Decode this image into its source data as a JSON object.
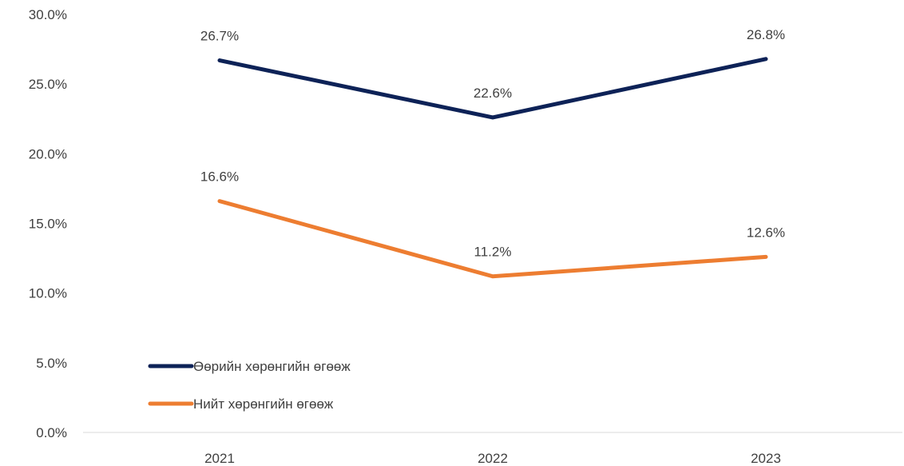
{
  "chart_data": {
    "type": "line",
    "title": "",
    "xlabel": "",
    "ylabel": "",
    "categories": [
      "2021",
      "2022",
      "2023"
    ],
    "ylim": [
      0,
      30
    ],
    "yticks": [
      "0.0%",
      "5.0%",
      "10.0%",
      "15.0%",
      "20.0%",
      "25.0%",
      "30.0%"
    ],
    "grid": false,
    "legend_position": "bottom-left",
    "series": [
      {
        "name": "Өөрийн хөрөнгийн өгөөж",
        "values": [
          26.7,
          22.6,
          26.8
        ],
        "labels": [
          "26.7%",
          "22.6%",
          "26.8%"
        ],
        "color": "#0d2257"
      },
      {
        "name": "Нийт хөрөнгийн өгөөж",
        "values": [
          16.6,
          11.2,
          12.6
        ],
        "labels": [
          "16.6%",
          "11.2%",
          "12.6%"
        ],
        "color": "#ed7d31"
      }
    ]
  }
}
